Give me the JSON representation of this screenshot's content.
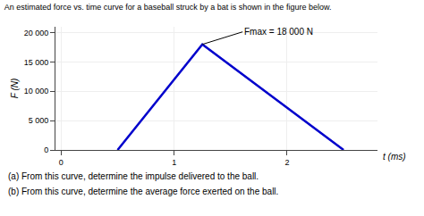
{
  "chart_data": {
    "type": "line",
    "title": "An estimated force vs. time curve for a baseball struck by a bat is shown in the figure below.",
    "x": [
      0.5,
      1.25,
      2.5
    ],
    "values": [
      0,
      18000,
      0
    ],
    "color": "#0000CC",
    "xlabel": "t (ms)",
    "ylabel": "F (N)",
    "xlim": [
      -0.05,
      2.8
    ],
    "ylim": [
      0,
      21000
    ],
    "xticks": [
      0,
      1,
      2
    ],
    "yticks": [
      0,
      {
        "value": 5000,
        "label": "5 000"
      },
      {
        "value": 10000,
        "label": "10 000"
      },
      {
        "value": 15000,
        "label": "15 000"
      },
      {
        "value": 20000,
        "label": "20 000"
      }
    ],
    "grid": true,
    "annotations": [
      {
        "text": "Fmax = 18 000 N",
        "x": 1.25,
        "y": 18000
      },
      {
        "text": "(a) From this curve, determine the impulse delivered to the ball."
      },
      {
        "text": "(b) From this curve, determine the average force exerted on the ball."
      }
    ]
  }
}
